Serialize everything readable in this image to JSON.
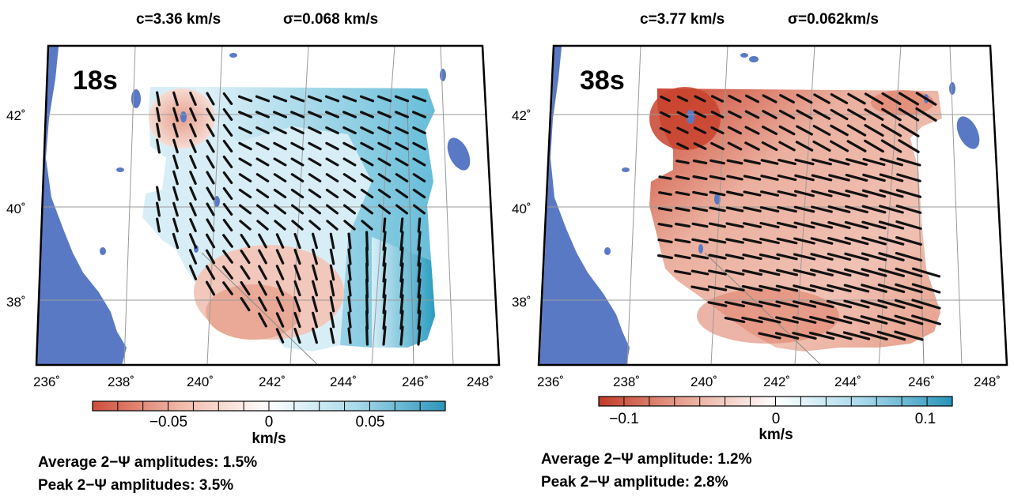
{
  "panels": [
    {
      "period": "18s",
      "c_label": "c=3.36 km/s",
      "sigma_label": "σ=0.068 km/s",
      "lat_labels": [
        "42˚",
        "40˚",
        "38˚"
      ],
      "lon_labels": [
        "236˚",
        "238˚",
        "240˚",
        "242˚",
        "244˚",
        "246˚",
        "248˚"
      ],
      "colorbar": {
        "ticks": [
          "−0.05",
          "0",
          "0.05"
        ],
        "unit": "km/s",
        "range": [
          -0.075,
          0.075
        ]
      },
      "avg_text": "Average 2−Ψ amplitudes: 1.5%",
      "peak_text": "Peak 2−Ψ amplitudes: 3.5%"
    },
    {
      "period": "38s",
      "c_label": "c=3.77 km/s",
      "sigma_label": "σ=0.062km/s",
      "lat_labels": [
        "42˚",
        "40˚",
        "38˚"
      ],
      "lon_labels": [
        "236˚",
        "238˚",
        "240˚",
        "242˚",
        "244˚",
        "246˚",
        "248˚"
      ],
      "colorbar": {
        "ticks": [
          "−0.1",
          "0",
          "0.1"
        ],
        "unit": "km/s",
        "range": [
          -0.15,
          0.15
        ]
      },
      "avg_text": "Average 2−Ψ amplitude: 1.2%",
      "peak_text": "Peak 2−Ψ amplitude: 2.8%"
    }
  ],
  "colors": {
    "water": "#5a79c5",
    "negative": "#c8452f",
    "positive": "#2a9fbf",
    "grid": "#999999"
  }
}
